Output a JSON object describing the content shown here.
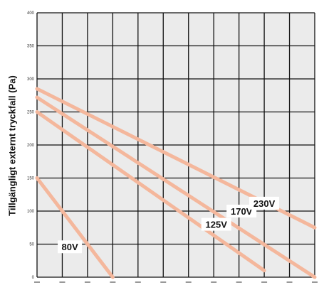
{
  "chart_data": {
    "type": "line",
    "title": "",
    "xlabel": "",
    "ylabel": "Tillgängligt externt tryckfall (Pa)",
    "ylim": [
      0,
      400
    ],
    "yticks": [
      0,
      50,
      100,
      150,
      200,
      250,
      300,
      350,
      400
    ],
    "xlim": [
      0,
      11
    ],
    "grid": true,
    "line_color": "#f4b79c",
    "plot_background": "#ebebeb",
    "series": [
      {
        "name": "80V",
        "x": [
          0,
          3
        ],
        "y": [
          150,
          0
        ]
      },
      {
        "name": "125V",
        "x": [
          0,
          9
        ],
        "y": [
          250,
          10
        ]
      },
      {
        "name": "170V",
        "x": [
          0,
          11
        ],
        "y": [
          272,
          0
        ]
      },
      {
        "name": "230V",
        "x": [
          0,
          11
        ],
        "y": [
          285,
          75
        ]
      }
    ]
  }
}
